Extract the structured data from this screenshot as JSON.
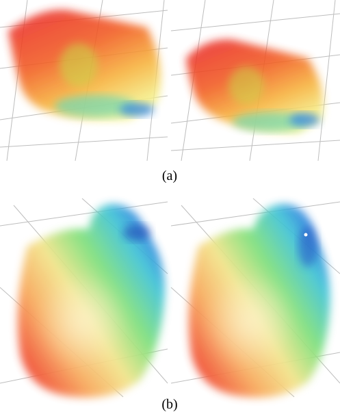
{
  "captions": {
    "a": "(a)",
    "b": "(b)"
  }
}
